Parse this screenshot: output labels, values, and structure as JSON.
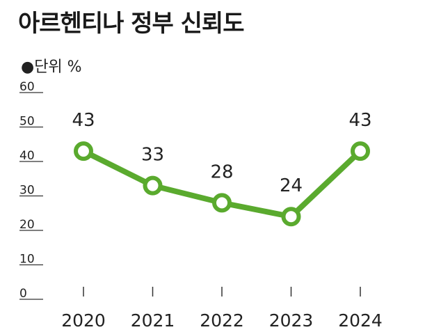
{
  "title": "아르헨티나 정부 신뢰도",
  "unit_label": "●단위 %",
  "colors": {
    "line": "#5aaa2e",
    "marker_fill": "#ffffff",
    "text": "#222222",
    "grid_tick": "#333333"
  },
  "chart_data": {
    "type": "line",
    "title": "아르헨티나 정부 신뢰도",
    "ylabel": "",
    "xlabel": "",
    "categories": [
      "2020",
      "2021",
      "2022",
      "2023",
      "2024"
    ],
    "series": [
      {
        "values": [
          43,
          33,
          28,
          24,
          43
        ]
      }
    ],
    "data_labels": [
      "43",
      "33",
      "28",
      "24",
      "43"
    ],
    "ylim": [
      0,
      60
    ],
    "yticks": [
      0,
      10,
      20,
      30,
      40,
      50,
      60
    ],
    "grid": false,
    "legend": "none"
  }
}
